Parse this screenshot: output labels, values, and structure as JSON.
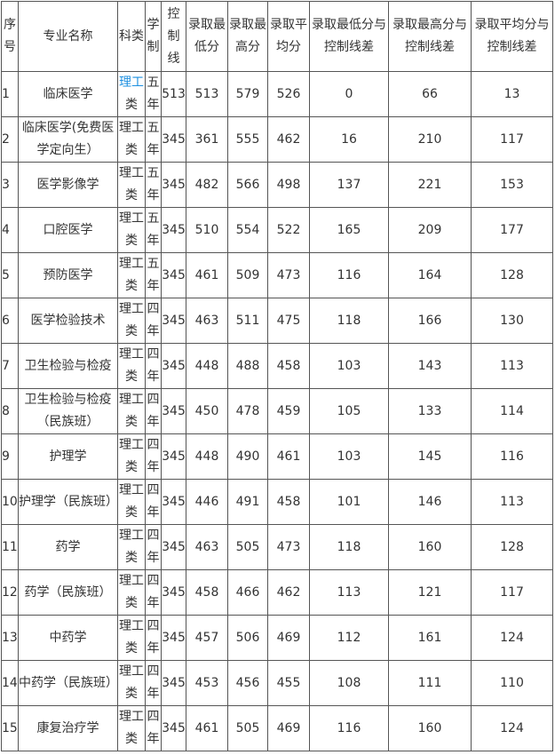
{
  "headers": [
    "序号",
    "专业名称",
    "科类",
    "学制",
    "控制线",
    "录取最低分",
    "录取最高分",
    "录取平均分",
    "录取最低分与控制线差",
    "录取最高分与控制线差",
    "录取平均分与控制线差"
  ],
  "rows": [
    {
      "no": "1",
      "major": "临床医学",
      "kelei_link": "理工",
      "kelei": "类",
      "xuezhi": "五年",
      "ctrl": "513",
      "min": "513",
      "max": "579",
      "avg": "526",
      "dmin": "0",
      "dmax": "66",
      "davg": "13"
    },
    {
      "no": "2",
      "major": "临床医学(免费医学定向生）",
      "kelei": "理工类",
      "xuezhi": "五年",
      "ctrl": "345",
      "min": "361",
      "max": "555",
      "avg": "462",
      "dmin": "16",
      "dmax": "210",
      "davg": "117"
    },
    {
      "no": "3",
      "major": "医学影像学",
      "kelei": "理工类",
      "xuezhi": "五年",
      "ctrl": "345",
      "min": "482",
      "max": "566",
      "avg": "498",
      "dmin": "137",
      "dmax": "221",
      "davg": "153"
    },
    {
      "no": "4",
      "major": "口腔医学",
      "kelei": "理工类",
      "xuezhi": "五年",
      "ctrl": "345",
      "min": "510",
      "max": "554",
      "avg": "522",
      "dmin": "165",
      "dmax": "209",
      "davg": "177"
    },
    {
      "no": "5",
      "major": "预防医学",
      "kelei": "理工类",
      "xuezhi": "五年",
      "ctrl": "345",
      "min": "461",
      "max": "509",
      "avg": "473",
      "dmin": "116",
      "dmax": "164",
      "davg": "128"
    },
    {
      "no": "6",
      "major": "医学检验技术",
      "kelei": "理工类",
      "xuezhi": "四年",
      "ctrl": "345",
      "min": "463",
      "max": "511",
      "avg": "475",
      "dmin": "118",
      "dmax": "166",
      "davg": "130"
    },
    {
      "no": "7",
      "major": "卫生检验与检疫",
      "kelei": "理工类",
      "xuezhi": "四年",
      "ctrl": "345",
      "min": "448",
      "max": "488",
      "avg": "458",
      "dmin": "103",
      "dmax": "143",
      "davg": "113"
    },
    {
      "no": "8",
      "major": "卫生检验与检疫（民族班）",
      "kelei": "理工类",
      "xuezhi": "四年",
      "ctrl": "345",
      "min": "450",
      "max": "478",
      "avg": "459",
      "dmin": "105",
      "dmax": "133",
      "davg": "114"
    },
    {
      "no": "9",
      "major": "护理学",
      "kelei": "理工类",
      "xuezhi": "四年",
      "ctrl": "345",
      "min": "448",
      "max": "490",
      "avg": "461",
      "dmin": "103",
      "dmax": "145",
      "davg": "116"
    },
    {
      "no": "10",
      "major": "护理学（民族班）",
      "kelei": "理工类",
      "xuezhi": "四年",
      "ctrl": "345",
      "min": "446",
      "max": "491",
      "avg": "458",
      "dmin": "101",
      "dmax": "146",
      "davg": "113"
    },
    {
      "no": "11",
      "major": "药学",
      "kelei": "理工类",
      "xuezhi": "四年",
      "ctrl": "345",
      "min": "463",
      "max": "505",
      "avg": "473",
      "dmin": "118",
      "dmax": "160",
      "davg": "128"
    },
    {
      "no": "12",
      "major": "药学（民族班）",
      "kelei": "理工类",
      "xuezhi": "四年",
      "ctrl": "345",
      "min": "458",
      "max": "466",
      "avg": "462",
      "dmin": "113",
      "dmax": "121",
      "davg": "117"
    },
    {
      "no": "13",
      "major": "中药学",
      "kelei": "理工类",
      "xuezhi": "四年",
      "ctrl": "345",
      "min": "457",
      "max": "506",
      "avg": "469",
      "dmin": "112",
      "dmax": "161",
      "davg": "124"
    },
    {
      "no": "14",
      "major": "中药学（民族班）",
      "kelei": "理工类",
      "xuezhi": "四年",
      "ctrl": "345",
      "min": "453",
      "max": "456",
      "avg": "455",
      "dmin": "108",
      "dmax": "111",
      "davg": "110"
    },
    {
      "no": "15",
      "major": "康复治疗学",
      "kelei": "理工类",
      "xuezhi": "四年",
      "ctrl": "345",
      "min": "461",
      "max": "505",
      "avg": "469",
      "dmin": "116",
      "dmax": "160",
      "davg": "124"
    }
  ]
}
